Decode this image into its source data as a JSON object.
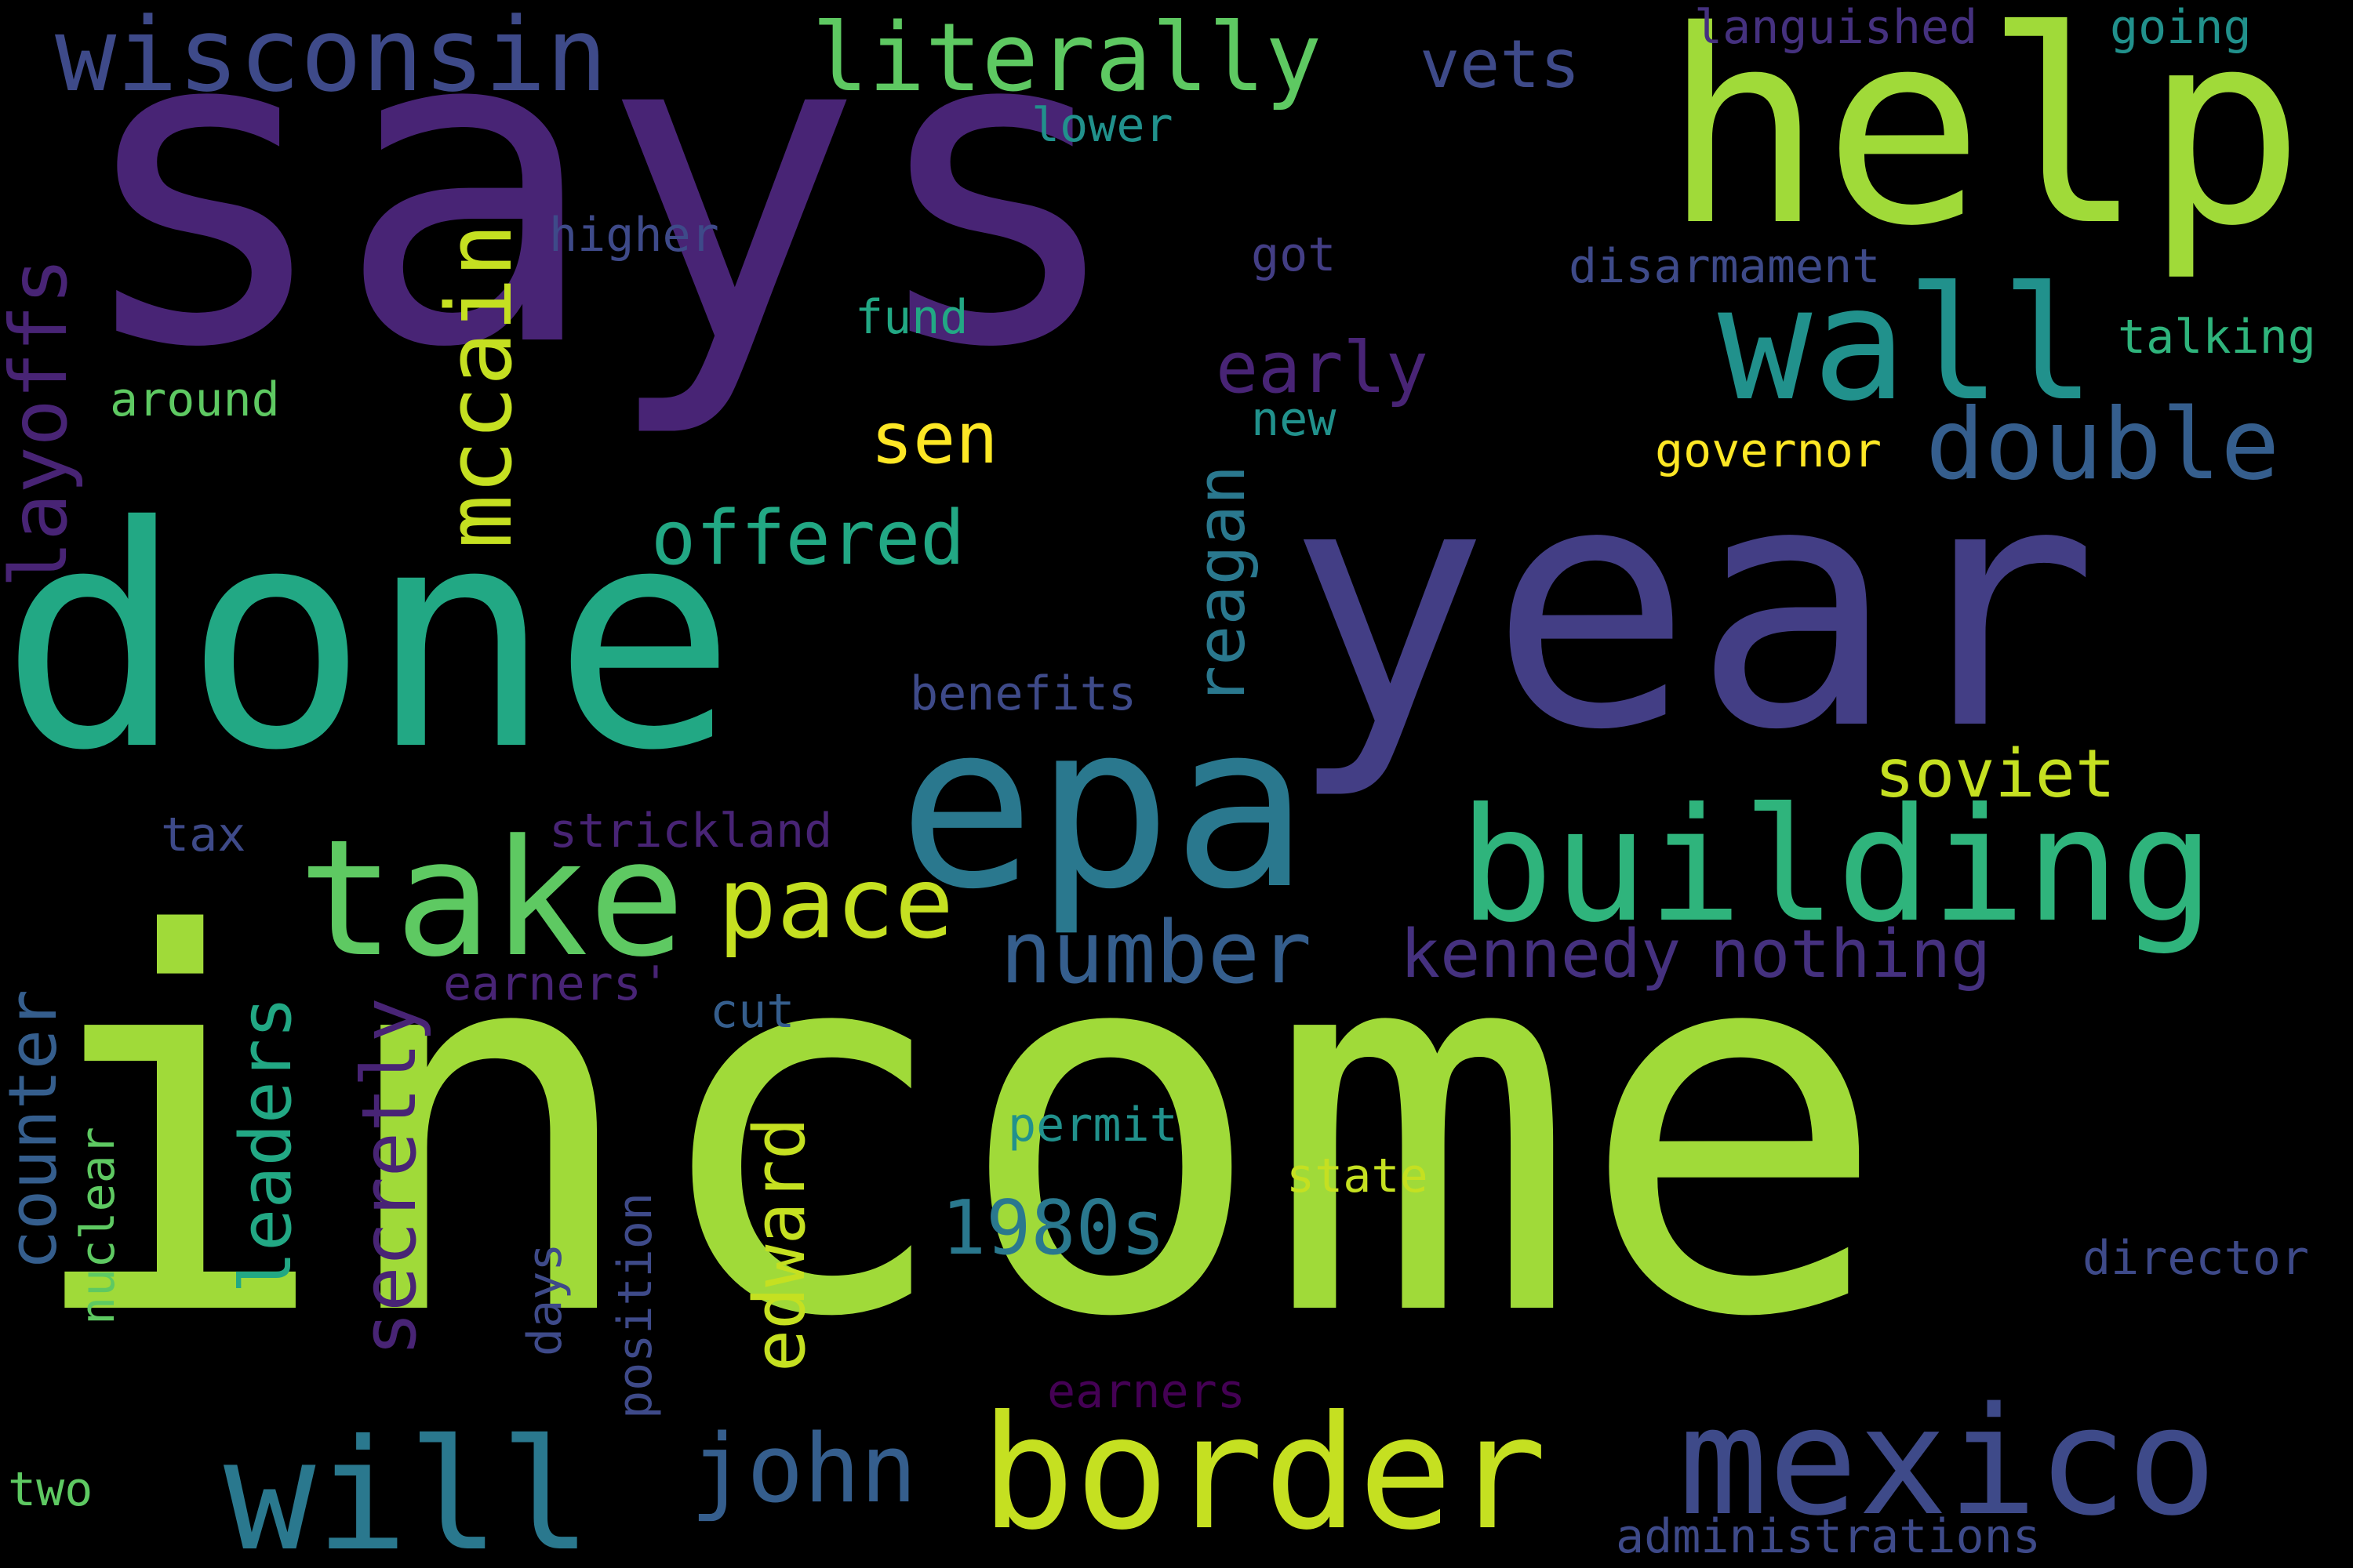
{
  "words": {
    "says": "says",
    "income": "income",
    "year": "year",
    "done": "done",
    "help": "help",
    "epa": "epa",
    "take": "take",
    "wall": "wall",
    "building": "building",
    "border": "border",
    "will": "will",
    "mexico": "mexico",
    "wisconsin": "wisconsin",
    "literally": "literally",
    "double": "double",
    "mccain": "mccain",
    "layoffs": "layoffs",
    "pace": "pace",
    "number": "number",
    "kennedy": "kennedy",
    "nothing": "nothing",
    "john": "john",
    "early": "early",
    "sen": "sen",
    "offered": "offered",
    "soviet": "soviet",
    "reagan": "reagan",
    "leaders": "leaders",
    "counter": "counter",
    "secretly": "secretly",
    "edward": "edward",
    "1980s": "1980s",
    "vets": "vets",
    "languished": "languished",
    "going": "going",
    "lower": "lower",
    "higher": "higher",
    "got": "got",
    "disarmament": "disarmament",
    "fund": "fund",
    "talking": "talking",
    "around": "around",
    "new": "new",
    "governor": "governor",
    "benefits": "benefits",
    "tax": "tax",
    "strickland": "strickland",
    "earners_possessive": "earners'",
    "cut": "cut",
    "nuclear": "nuclear",
    "permit": "permit",
    "state": "state",
    "position": "position",
    "days": "days",
    "director": "director",
    "earners": "earners",
    "two": "two",
    "administrations": "administrations"
  },
  "colors": {
    "background": "#000000",
    "dark_purple": "#482475",
    "violet": "#45317f",
    "indigo": "#433e85",
    "slate_blue": "#3e4a89",
    "steel_blue": "#355e8d",
    "teal_blue": "#2a788e",
    "teal": "#21918c",
    "green_teal": "#22a884",
    "green": "#2fb47c",
    "light_green": "#5ec962",
    "lime": "#a0da39",
    "yellow_green": "#c5e021",
    "yellow": "#fde725",
    "deep_purple": "#440154"
  }
}
